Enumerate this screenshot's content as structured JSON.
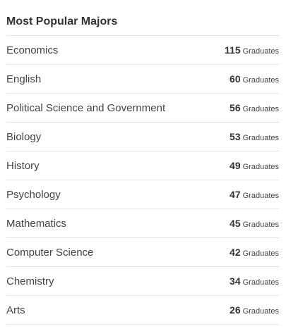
{
  "widget": {
    "title": "Most Popular Majors",
    "unit_label": "Graduates",
    "items": [
      {
        "name": "Economics",
        "count": "115"
      },
      {
        "name": "English",
        "count": "60"
      },
      {
        "name": "Political Science and Government",
        "count": "56"
      },
      {
        "name": "Biology",
        "count": "53"
      },
      {
        "name": "History",
        "count": "49"
      },
      {
        "name": "Psychology",
        "count": "47"
      },
      {
        "name": "Mathematics",
        "count": "45"
      },
      {
        "name": "Computer Science",
        "count": "42"
      },
      {
        "name": "Chemistry",
        "count": "34"
      },
      {
        "name": "Arts",
        "count": "26"
      }
    ]
  }
}
